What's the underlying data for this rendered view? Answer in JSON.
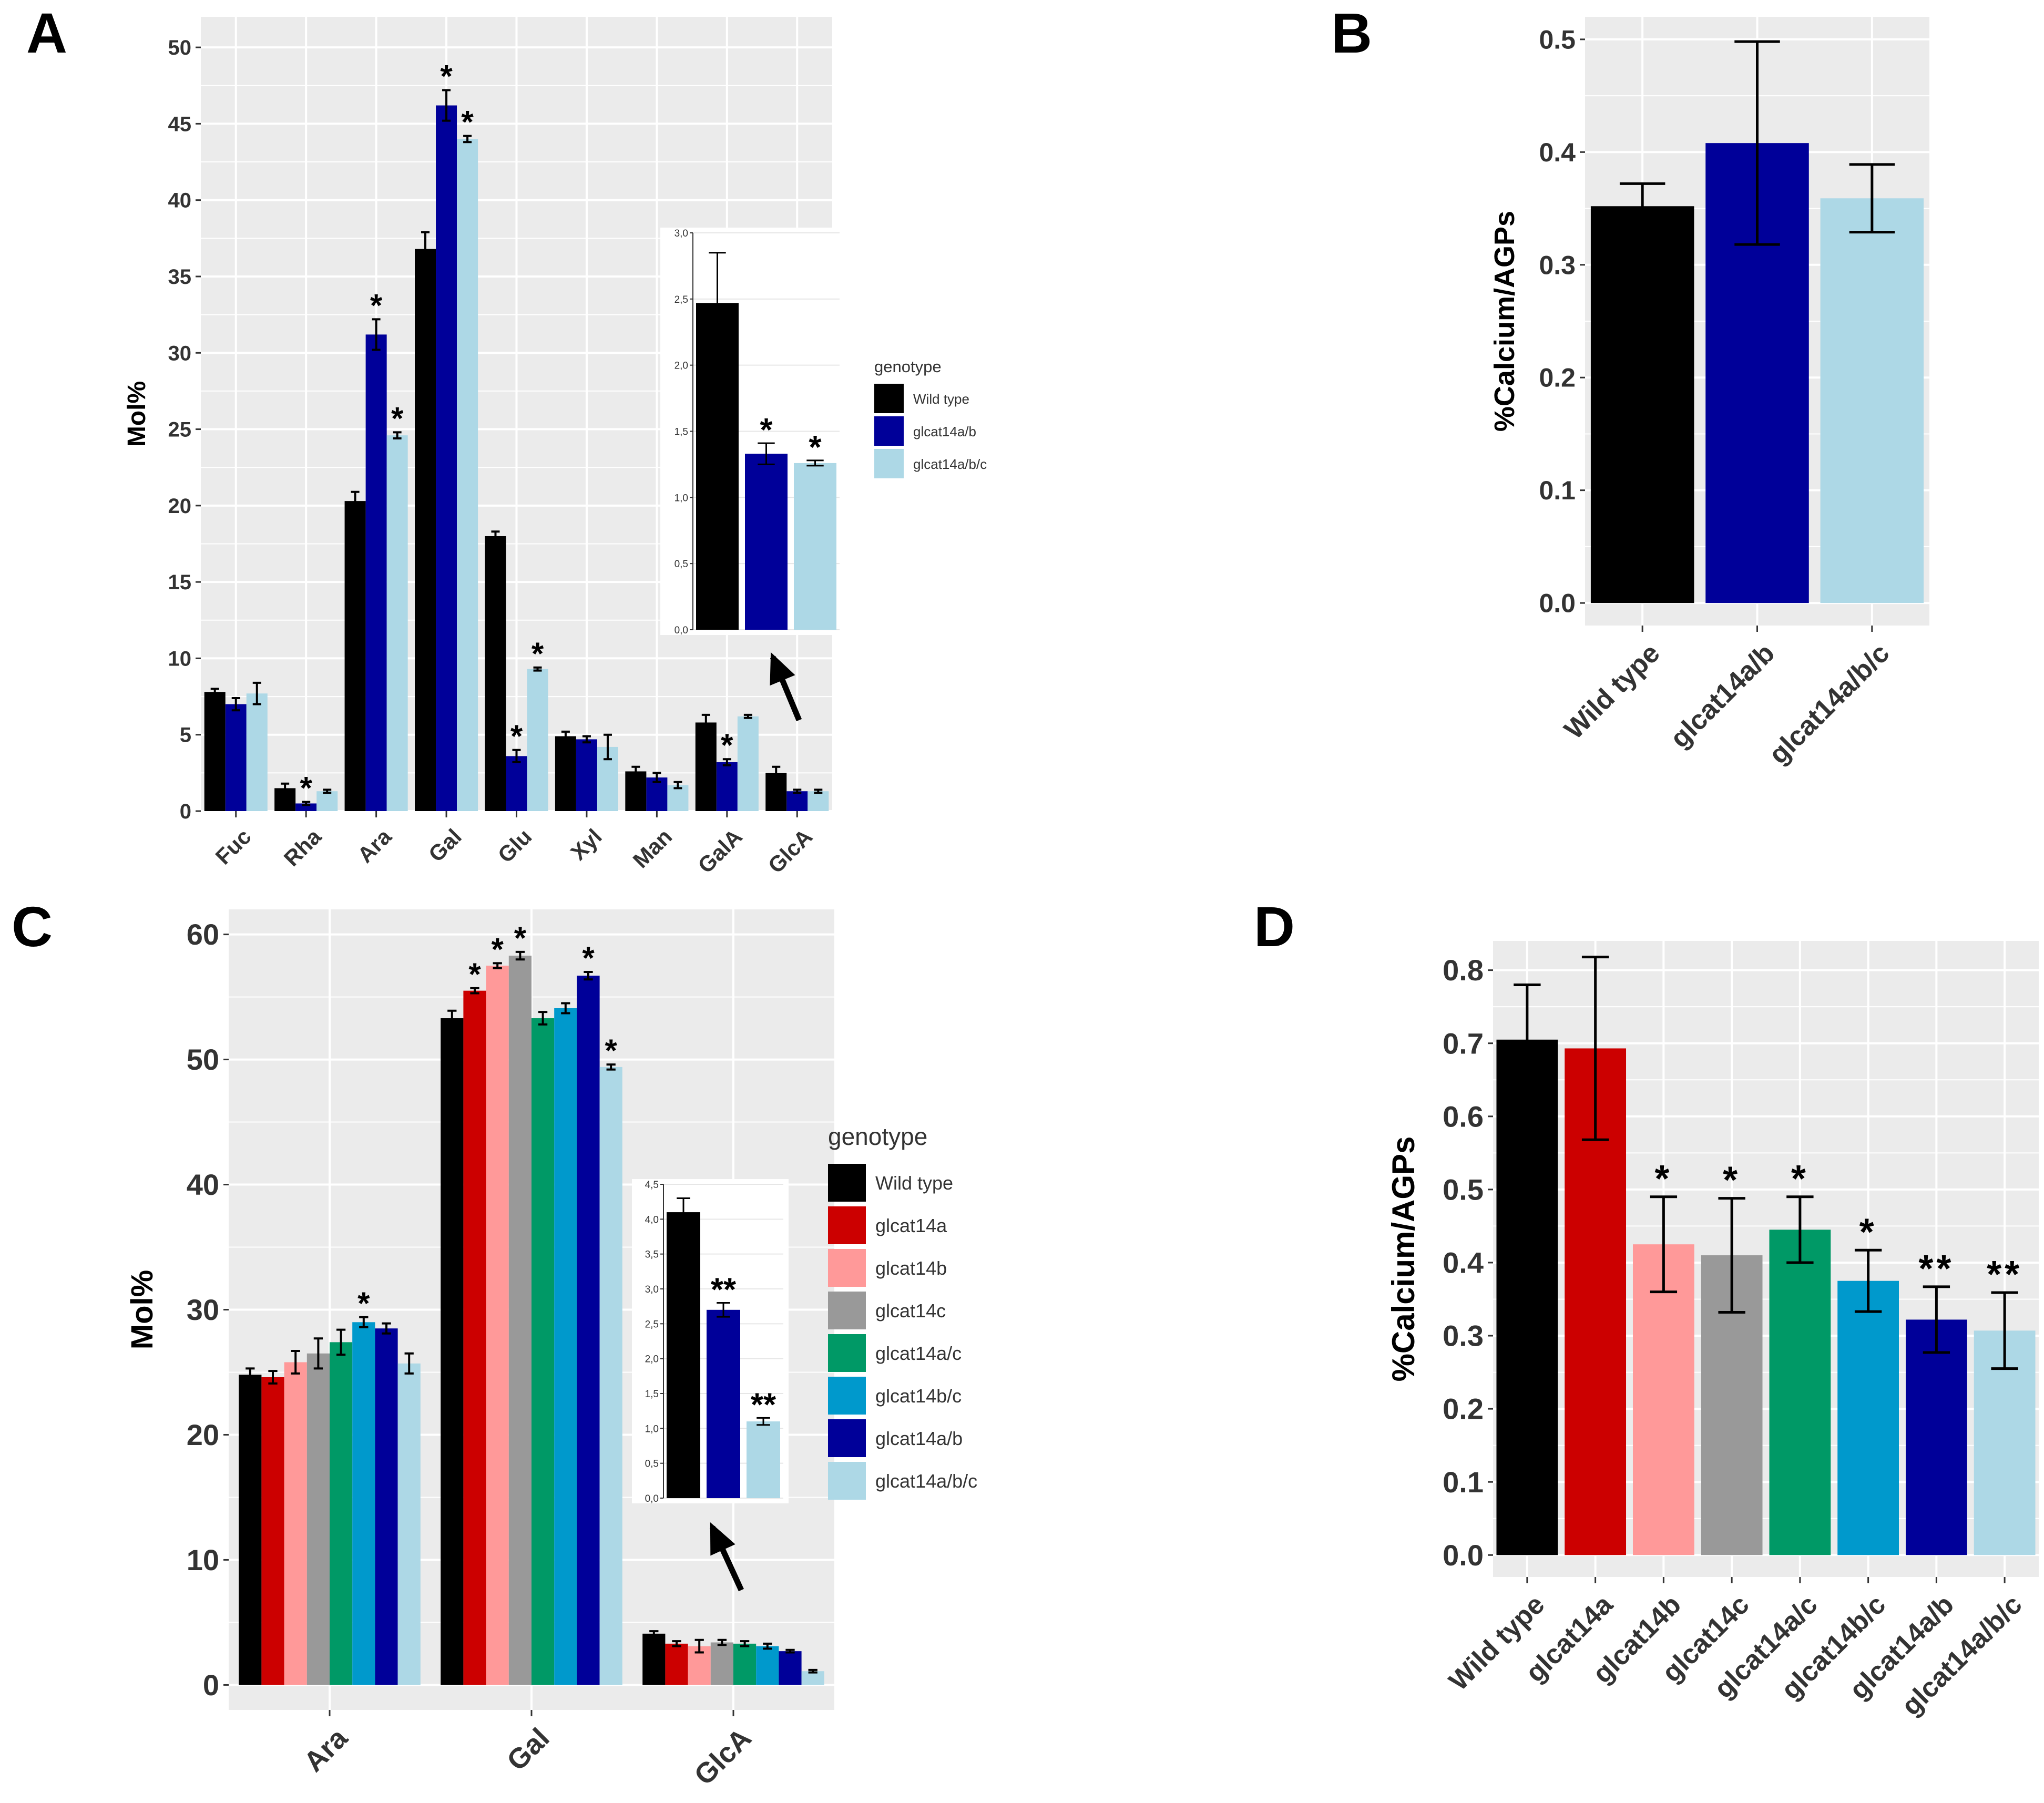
{
  "colors": {
    "panel_bg": "#ebebeb",
    "grid": "#ffffff",
    "text": "#333333",
    "title": "#000000",
    "wild_type": "#000000",
    "glcat14a": "#cc0000",
    "glcat14b": "#ff9999",
    "glcat14c": "#999999",
    "glcat14a_c": "#009966",
    "glcat14b_c": "#0099cc",
    "glcat14a_b": "#000099",
    "glcat14a_b_c": "#add8e6"
  },
  "chart_data": [
    {
      "panel": "A",
      "type": "bar",
      "ylabel": "Mol%",
      "ylim": [
        0,
        52
      ],
      "yticks": [
        0,
        5,
        10,
        15,
        20,
        25,
        30,
        35,
        40,
        45,
        50
      ],
      "categories": [
        "Fuc",
        "Rha",
        "Ara",
        "Gal",
        "Glu",
        "Xyl",
        "Man",
        "GalA",
        "GlcA"
      ],
      "legend_title": "genotype",
      "legend_position": "right",
      "series": [
        {
          "name": "Wild type",
          "color_key": "wild_type",
          "values": [
            7.8,
            1.5,
            20.3,
            36.8,
            18.0,
            4.9,
            2.6,
            5.8,
            2.5
          ],
          "errors": [
            0.2,
            0.3,
            0.6,
            1.1,
            0.3,
            0.3,
            0.3,
            0.5,
            0.4
          ],
          "stars": [
            "",
            "",
            "",
            "",
            "",
            "",
            "",
            "",
            ""
          ]
        },
        {
          "name": "glcat14a/b",
          "color_key": "glcat14a_b",
          "values": [
            7.0,
            0.5,
            31.2,
            46.2,
            3.6,
            4.7,
            2.2,
            3.2,
            1.3
          ],
          "errors": [
            0.4,
            0.1,
            1.0,
            1.0,
            0.4,
            0.2,
            0.3,
            0.2,
            0.1
          ],
          "stars": [
            "",
            "*",
            "*",
            "*",
            "*",
            "",
            "",
            "*",
            ""
          ]
        },
        {
          "name": "glcat14a/b/c",
          "color_key": "glcat14a_b_c",
          "values": [
            7.7,
            1.3,
            24.6,
            44.0,
            9.3,
            4.2,
            1.7,
            6.2,
            1.3
          ],
          "errors": [
            0.7,
            0.1,
            0.2,
            0.2,
            0.1,
            0.8,
            0.2,
            0.1,
            0.1
          ],
          "stars": [
            "",
            "",
            "*",
            "*",
            "*",
            "",
            "",
            "",
            ""
          ]
        }
      ],
      "inset": {
        "category": "GlcA",
        "ylim": [
          0,
          3.0
        ],
        "yticks": [
          "0,0",
          "0,5",
          "1,0",
          "1,5",
          "2,0",
          "2,5",
          "3,0"
        ],
        "ytick_values": [
          0,
          0.5,
          1.0,
          1.5,
          2.0,
          2.5,
          3.0
        ],
        "values": [
          2.47,
          1.33,
          1.26
        ],
        "errors": [
          0.38,
          0.08,
          0.02
        ],
        "stars": [
          "",
          "*",
          "*"
        ]
      }
    },
    {
      "panel": "B",
      "type": "bar",
      "ylabel": "%Calcium/AGPs",
      "ylim": [
        -0.02,
        0.52
      ],
      "yticks": [
        "0.0",
        "0.1",
        "0.2",
        "0.3",
        "0.4",
        "0.5"
      ],
      "ytick_values": [
        0,
        0.1,
        0.2,
        0.3,
        0.4,
        0.5
      ],
      "categories": [
        "Wild type",
        "glcat14a/b",
        "glcat14a/b/c"
      ],
      "color_keys": [
        "wild_type",
        "glcat14a_b",
        "glcat14a_b_c"
      ],
      "values": [
        0.352,
        0.408,
        0.359
      ],
      "errors": [
        0.02,
        0.09,
        0.03
      ]
    },
    {
      "panel": "C",
      "type": "bar",
      "ylabel": "Mol%",
      "ylim": [
        -2,
        62
      ],
      "yticks": [
        0,
        10,
        20,
        30,
        40,
        50,
        60
      ],
      "categories": [
        "Ara",
        "Gal",
        "GlcA"
      ],
      "legend_title": "genotype",
      "legend_position": "right",
      "series": [
        {
          "name": "Wild type",
          "color_key": "wild_type",
          "values": [
            24.8,
            53.3,
            4.1
          ],
          "errors": [
            0.5,
            0.6,
            0.2
          ],
          "stars": [
            "",
            "",
            ""
          ]
        },
        {
          "name": "glcat14a",
          "color_key": "glcat14a",
          "values": [
            24.6,
            55.5,
            3.3
          ],
          "errors": [
            0.5,
            0.2,
            0.2
          ],
          "stars": [
            "",
            "*",
            ""
          ]
        },
        {
          "name": "glcat14b",
          "color_key": "glcat14b",
          "values": [
            25.8,
            57.5,
            3.1
          ],
          "errors": [
            0.9,
            0.2,
            0.5
          ],
          "stars": [
            "",
            "*",
            ""
          ]
        },
        {
          "name": "glcat14c",
          "color_key": "glcat14c",
          "values": [
            26.5,
            58.3,
            3.4
          ],
          "errors": [
            1.2,
            0.3,
            0.2
          ],
          "stars": [
            "",
            "*",
            ""
          ]
        },
        {
          "name": "glcat14a/c",
          "color_key": "glcat14a_c",
          "values": [
            27.4,
            53.3,
            3.3
          ],
          "errors": [
            1.0,
            0.5,
            0.2
          ],
          "stars": [
            "",
            "",
            ""
          ]
        },
        {
          "name": "glcat14b/c",
          "color_key": "glcat14b_c",
          "values": [
            29.0,
            54.1,
            3.1
          ],
          "errors": [
            0.4,
            0.4,
            0.2
          ],
          "stars": [
            "*",
            "",
            ""
          ]
        },
        {
          "name": "glcat14a/b",
          "color_key": "glcat14a_b",
          "values": [
            28.5,
            56.7,
            2.7
          ],
          "errors": [
            0.4,
            0.3,
            0.1
          ],
          "stars": [
            "",
            "*",
            ""
          ]
        },
        {
          "name": "glcat14a/b/c",
          "color_key": "glcat14a_b_c",
          "values": [
            25.7,
            49.4,
            1.1
          ],
          "errors": [
            0.8,
            0.2,
            0.1
          ],
          "stars": [
            "",
            "*",
            ""
          ]
        }
      ],
      "inset": {
        "category": "GlcA",
        "ylim": [
          0,
          4.5
        ],
        "yticks": [
          "0,0",
          "0,5",
          "1,0",
          "1,5",
          "2,0",
          "2,5",
          "3,0",
          "3,5",
          "4,0",
          "4,5"
        ],
        "ytick_values": [
          0,
          0.5,
          1.0,
          1.5,
          2.0,
          2.5,
          3.0,
          3.5,
          4.0,
          4.5
        ],
        "values": [
          4.1,
          2.7,
          1.1
        ],
        "errors": [
          0.2,
          0.1,
          0.05
        ],
        "stars": [
          "",
          "**",
          "**"
        ]
      }
    },
    {
      "panel": "D",
      "type": "bar",
      "ylabel": "%Calcium/AGPs",
      "ylim": [
        -0.03,
        0.84
      ],
      "yticks": [
        "0.0",
        "0.1",
        "0.2",
        "0.3",
        "0.4",
        "0.5",
        "0.6",
        "0.7",
        "0.8"
      ],
      "ytick_values": [
        0,
        0.1,
        0.2,
        0.3,
        0.4,
        0.5,
        0.6,
        0.7,
        0.8
      ],
      "categories": [
        "Wild type",
        "glcat14a",
        "glcat14b",
        "glcat14c",
        "glcat14a/c",
        "glcat14b/c",
        "glcat14a/b",
        "glcat14a/b/c"
      ],
      "color_keys": [
        "wild_type",
        "glcat14a",
        "glcat14b",
        "glcat14c",
        "glcat14a_c",
        "glcat14b_c",
        "glcat14a_b",
        "glcat14a_b_c"
      ],
      "values": [
        0.705,
        0.693,
        0.425,
        0.41,
        0.445,
        0.375,
        0.322,
        0.307
      ],
      "errors": [
        0.075,
        0.125,
        0.065,
        0.078,
        0.045,
        0.042,
        0.045,
        0.052
      ],
      "stars": [
        "",
        "",
        "*",
        "*",
        "*",
        "*",
        "**",
        "**"
      ]
    }
  ]
}
